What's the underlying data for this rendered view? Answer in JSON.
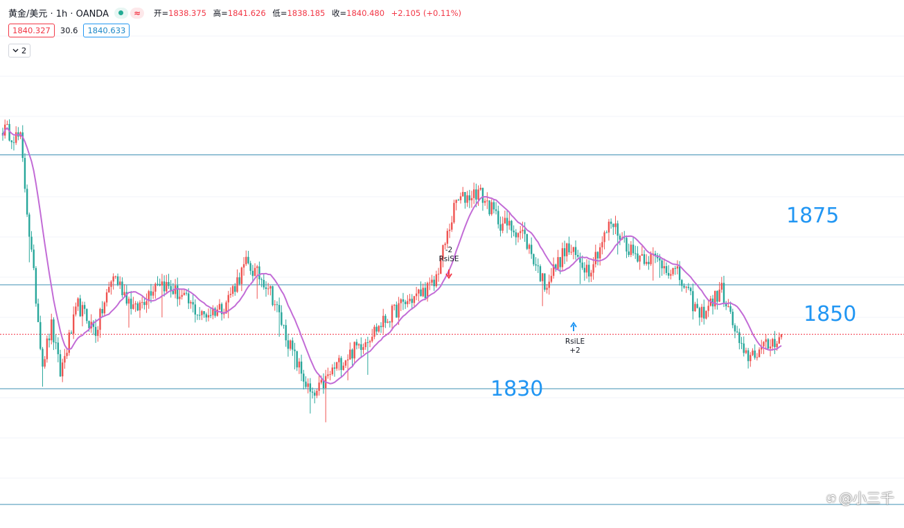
{
  "header": {
    "symbol": "黄金/美元 · 1h · OANDA",
    "wave_icon": "≈",
    "open_label": "开=",
    "open": "1838.375",
    "high_label": "高=",
    "high": "1841.626",
    "low_label": "低=",
    "low": "1838.185",
    "close_label": "收=",
    "close": "1840.480",
    "change": "+2.105 (+0.11%)"
  },
  "trade": {
    "sell": "1840.327",
    "spread": "30.6",
    "buy": "1840.633"
  },
  "indicators_toggle": {
    "icon": "chevron-down-icon",
    "count": "2"
  },
  "signals": {
    "short_qty": "-2",
    "short_name": "RsiSE",
    "long_name": "RsiLE",
    "long_qty": "+2"
  },
  "watermark": {
    "icon": "weibo-icon",
    "text": "@小三千"
  },
  "colors": {
    "up": "#ef5350",
    "down": "#26a69a",
    "line": "#c26bd6",
    "level": "#2196f3",
    "hline": "#3d8fb3",
    "current": "#f23645"
  },
  "chart_data": {
    "type": "candlestick",
    "symbol": "XAUUSD",
    "interval": "1h",
    "indicator": "moving average (purple line)",
    "current_price": 1840.48,
    "horizontal_levels": [
      {
        "label": "1875",
        "value": 1875
      },
      {
        "label": "1850",
        "value": 1850
      },
      {
        "label": "1830",
        "value": 1830
      }
    ],
    "price_path_points": [
      {
        "i": 0,
        "price": 1880
      },
      {
        "i": 8,
        "price": 1878
      },
      {
        "i": 12,
        "price": 1860
      },
      {
        "i": 18,
        "price": 1835
      },
      {
        "i": 22,
        "price": 1842
      },
      {
        "i": 26,
        "price": 1833
      },
      {
        "i": 34,
        "price": 1846
      },
      {
        "i": 42,
        "price": 1841
      },
      {
        "i": 50,
        "price": 1852
      },
      {
        "i": 60,
        "price": 1845
      },
      {
        "i": 70,
        "price": 1851
      },
      {
        "i": 80,
        "price": 1848
      },
      {
        "i": 90,
        "price": 1844
      },
      {
        "i": 100,
        "price": 1846
      },
      {
        "i": 110,
        "price": 1854
      },
      {
        "i": 120,
        "price": 1850
      },
      {
        "i": 130,
        "price": 1838
      },
      {
        "i": 140,
        "price": 1828
      },
      {
        "i": 150,
        "price": 1834
      },
      {
        "i": 165,
        "price": 1840
      },
      {
        "i": 180,
        "price": 1846
      },
      {
        "i": 195,
        "price": 1850
      },
      {
        "i": 205,
        "price": 1866
      },
      {
        "i": 215,
        "price": 1868
      },
      {
        "i": 225,
        "price": 1862
      },
      {
        "i": 235,
        "price": 1860
      },
      {
        "i": 245,
        "price": 1850
      },
      {
        "i": 255,
        "price": 1857
      },
      {
        "i": 265,
        "price": 1853
      },
      {
        "i": 275,
        "price": 1862
      },
      {
        "i": 285,
        "price": 1856
      },
      {
        "i": 295,
        "price": 1855
      },
      {
        "i": 305,
        "price": 1852
      },
      {
        "i": 315,
        "price": 1844
      },
      {
        "i": 325,
        "price": 1849
      },
      {
        "i": 335,
        "price": 1836
      },
      {
        "i": 345,
        "price": 1838
      },
      {
        "i": 352,
        "price": 1840.48
      }
    ]
  }
}
